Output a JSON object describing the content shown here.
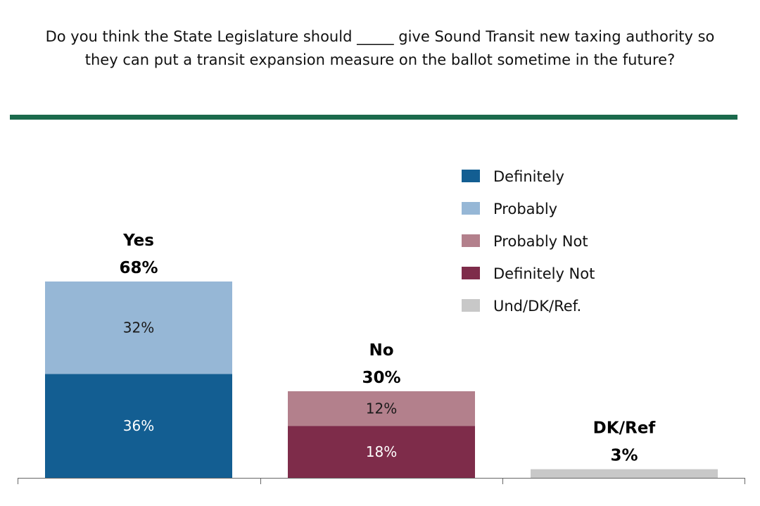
{
  "title_lines": [
    "Do you think the State Legislature should _____ give Sound Transit new taxing authority so",
    "they can put a transit expansion measure on the ballot sometime in the future?"
  ],
  "colors": {
    "divider": "#1b6a4c",
    "axis": "#666666"
  },
  "chart_data": {
    "type": "bar",
    "stacked": true,
    "categories": [
      "Yes",
      "No",
      "DK/Ref"
    ],
    "totals": [
      "68%",
      "30%",
      "3%"
    ],
    "ylim": [
      0,
      75
    ],
    "grid": false,
    "legend_position": "top-right",
    "series": [
      {
        "name": "Definitely",
        "color": "#135e92",
        "values": [
          36,
          0,
          0
        ],
        "labels": [
          "36%",
          "",
          ""
        ]
      },
      {
        "name": "Probably",
        "color": "#96b7d6",
        "values": [
          32,
          0,
          0
        ],
        "labels": [
          "32%",
          "",
          ""
        ]
      },
      {
        "name": "Probably Not",
        "color": "#b3808c",
        "values": [
          0,
          12,
          0
        ],
        "labels": [
          "",
          "12%",
          ""
        ]
      },
      {
        "name": "Definitely Not",
        "color": "#7e2c4a",
        "values": [
          0,
          18,
          0
        ],
        "labels": [
          "",
          "18%",
          ""
        ]
      },
      {
        "name": "Und/DK/Ref.",
        "color": "#c8c8c8",
        "values": [
          0,
          0,
          3
        ],
        "labels": [
          "",
          "",
          ""
        ]
      }
    ],
    "stack_order": [
      [
        "Definitely",
        "Probably"
      ],
      [
        "Definitely Not",
        "Probably Not"
      ],
      [
        "Und/DK/Ref."
      ]
    ]
  }
}
